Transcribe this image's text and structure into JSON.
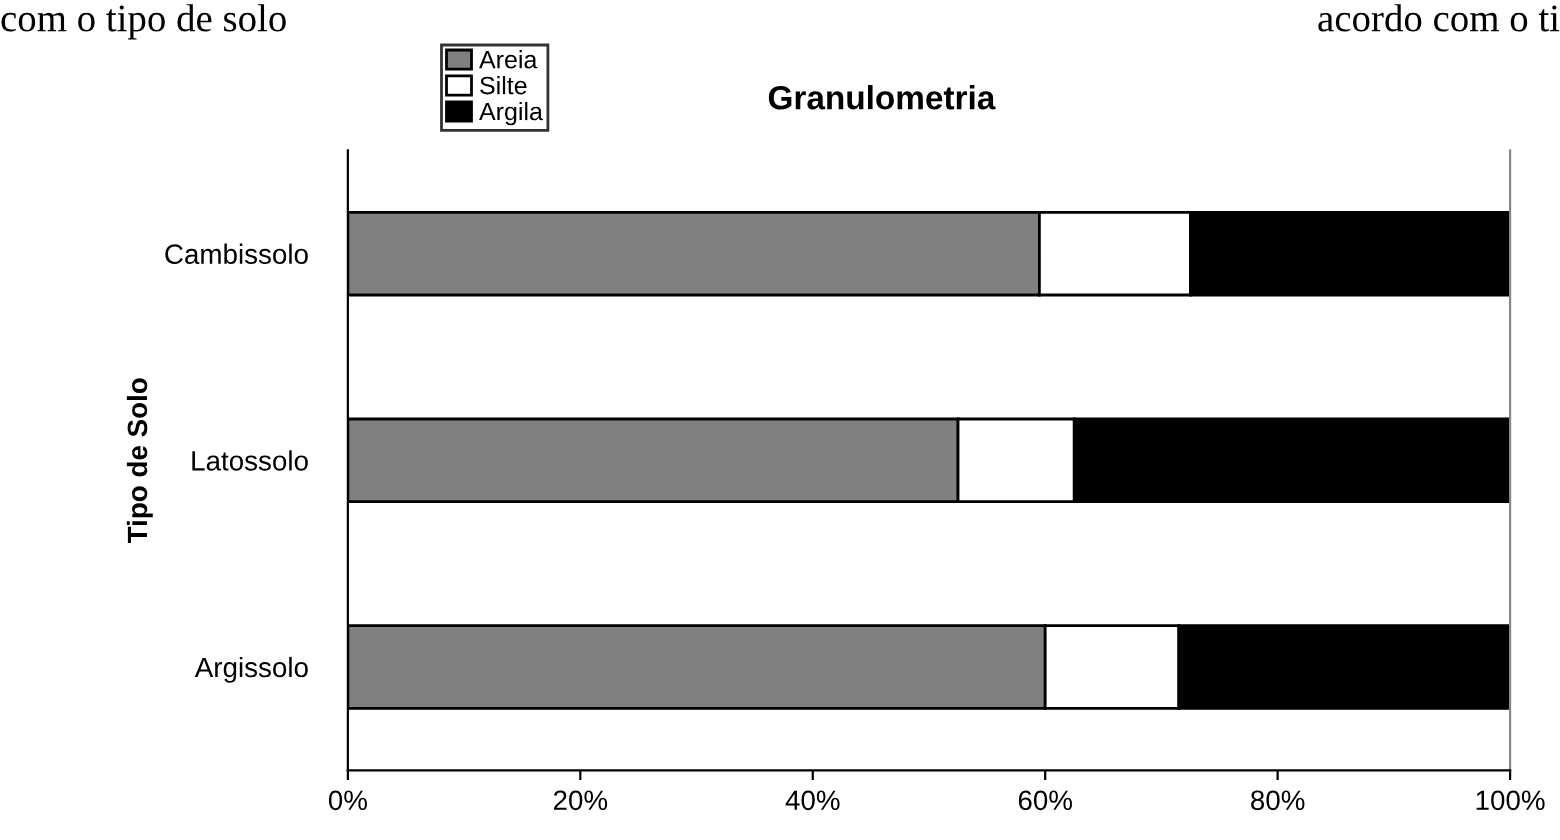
{
  "chart_data": {
    "type": "bar",
    "orientation": "horizontal",
    "stacked": true,
    "title": "Granulometria",
    "ylabel": "Tipo de Solo",
    "categories": [
      "Cambissolo",
      "Latossolo",
      "Argissolo"
    ],
    "series": [
      {
        "name": "Areia",
        "color": "#808080",
        "values": [
          59.5,
          52.5,
          60
        ]
      },
      {
        "name": "Silte",
        "color": "#ffffff",
        "values": [
          13,
          10,
          11.5
        ]
      },
      {
        "name": "Argila",
        "color": "#000000",
        "values": [
          27.5,
          37.5,
          28.5
        ]
      }
    ],
    "xlim": [
      0,
      100
    ],
    "xticks": [
      {
        "value": 0,
        "label": "0%"
      },
      {
        "value": 20,
        "label": "20%"
      },
      {
        "value": 40,
        "label": "40%"
      },
      {
        "value": 60,
        "label": "60%"
      },
      {
        "value": 80,
        "label": "80%"
      },
      {
        "value": 100,
        "label": "100%"
      }
    ],
    "grid": false,
    "legend": "top left",
    "annotations": [
      "com o tipo de solo",
      "acordo com o ti"
    ]
  }
}
